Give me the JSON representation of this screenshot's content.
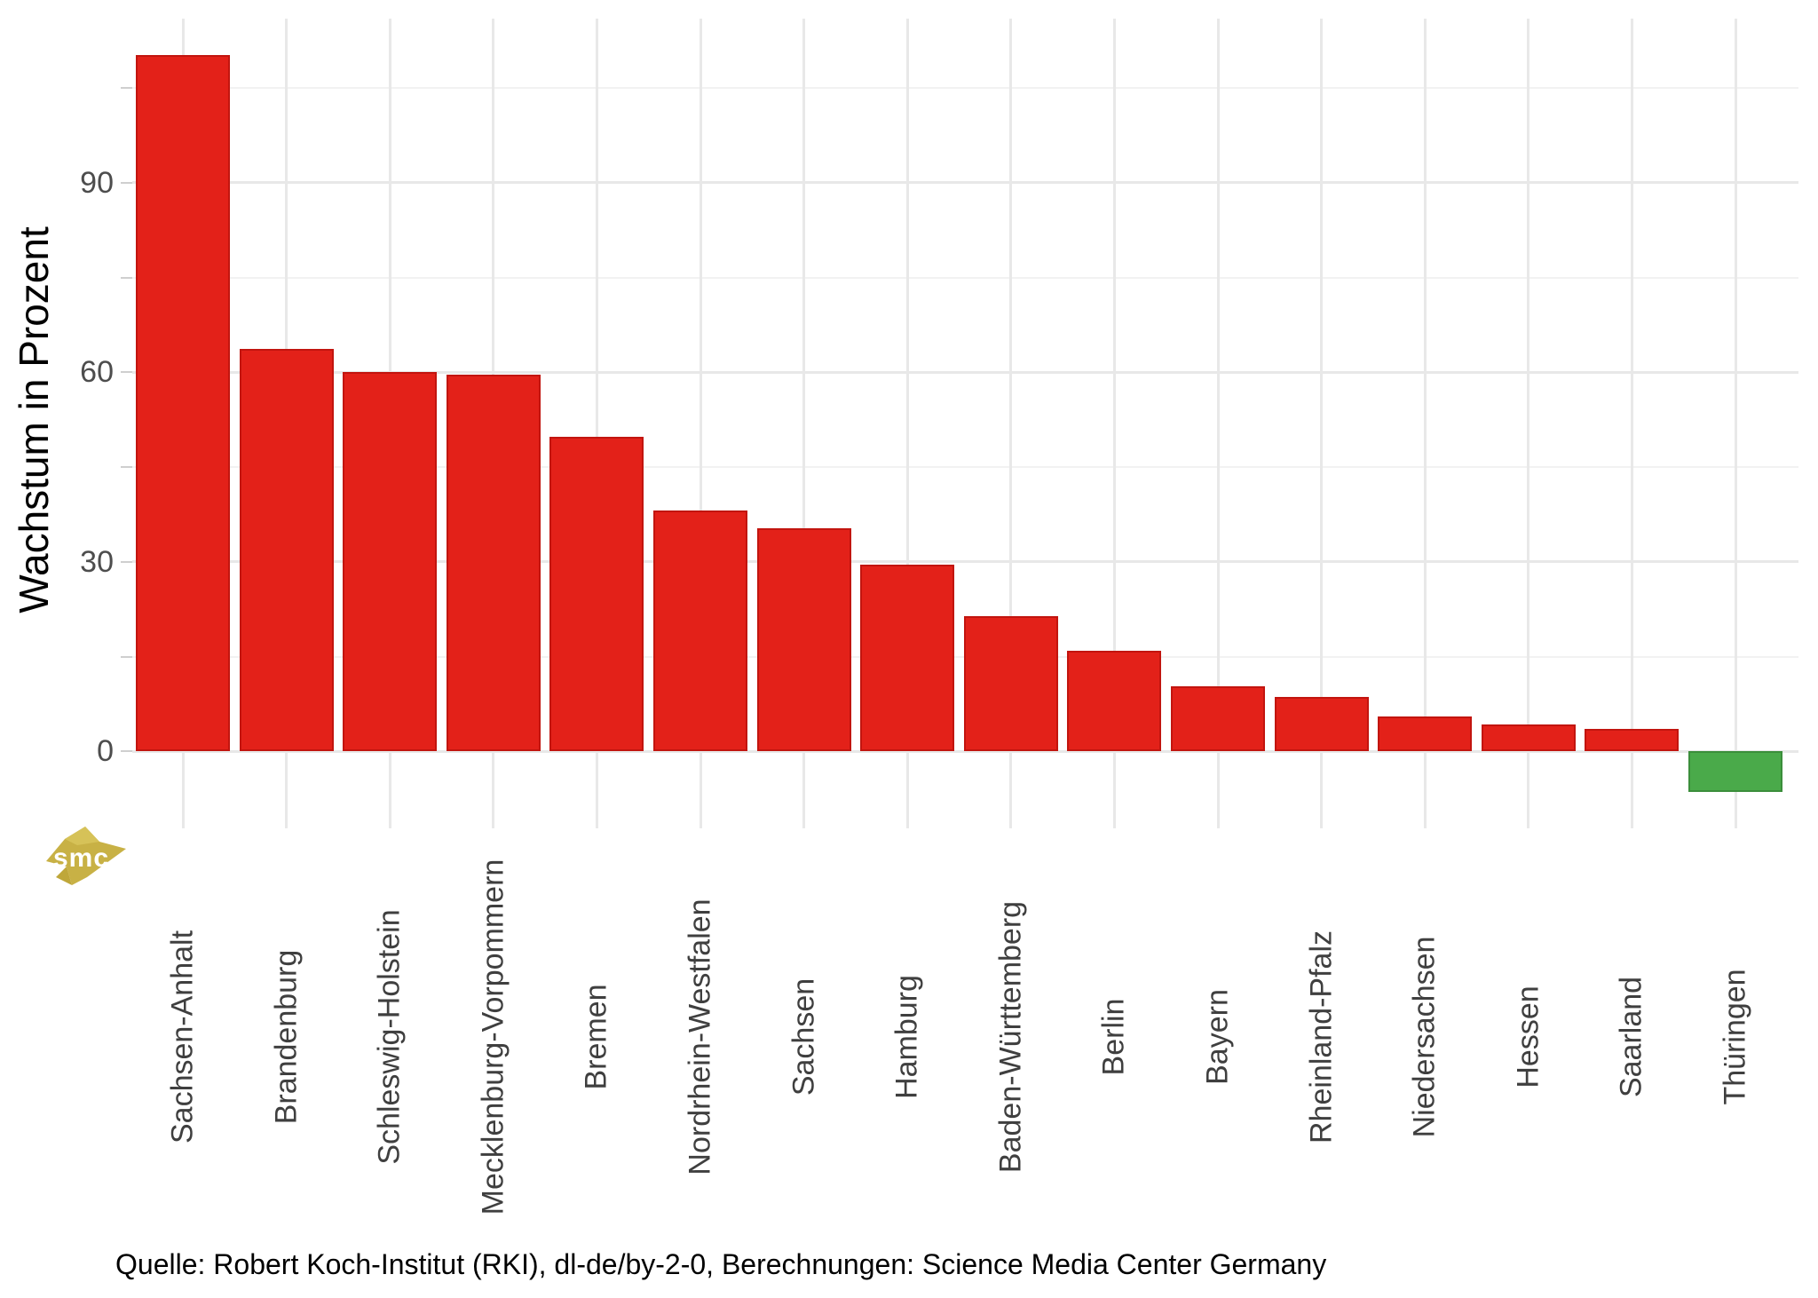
{
  "chart_data": {
    "type": "bar",
    "title": "",
    "xlabel": "",
    "ylabel": "Wachstum in Prozent",
    "categories": [
      "Sachsen-Anhalt",
      "Brandenburg",
      "Schleswig-Holstein",
      "Mecklenburg-Vorpommern",
      "Bremen",
      "Nordrhein-Westfalen",
      "Sachsen",
      "Hamburg",
      "Baden-Württemberg",
      "Berlin",
      "Bayern",
      "Rheinland-Pfalz",
      "Niedersachsen",
      "Hessen",
      "Saarland",
      "Thüringen"
    ],
    "values": [
      110.2,
      63.7,
      60.1,
      59.6,
      49.8,
      38.1,
      35.3,
      29.5,
      21.4,
      15.9,
      10.3,
      8.6,
      5.5,
      4.2,
      3.5,
      -6.5
    ],
    "y_axis": {
      "major_ticks": [
        0,
        30,
        60,
        90
      ],
      "minor_ticks": [
        15,
        45,
        75,
        105
      ],
      "ylim": [
        -12.2,
        116
      ]
    },
    "grid": "on",
    "legend": "none",
    "colors": {
      "positive_fill": "#e32119",
      "positive_stroke": "#c2150f",
      "negative_fill": "#4aaa4a",
      "negative_stroke": "#3b8e3b",
      "grid_major": "#e8e8e8",
      "grid_minor": "#f2f2f2",
      "tick": "#cfcfcf",
      "axis_text": "#3f3f3f",
      "tick_text": "#4d4d4d"
    }
  },
  "caption": {
    "text": "Quelle: Robert Koch-Institut (RKI), dl-de/by-2-0, Berechnungen: Science Media Center Germany"
  },
  "logo": {
    "text": "smc",
    "color_main": "#c8b145",
    "color_light": "#d6c258",
    "color_dark": "#bfa73a"
  }
}
